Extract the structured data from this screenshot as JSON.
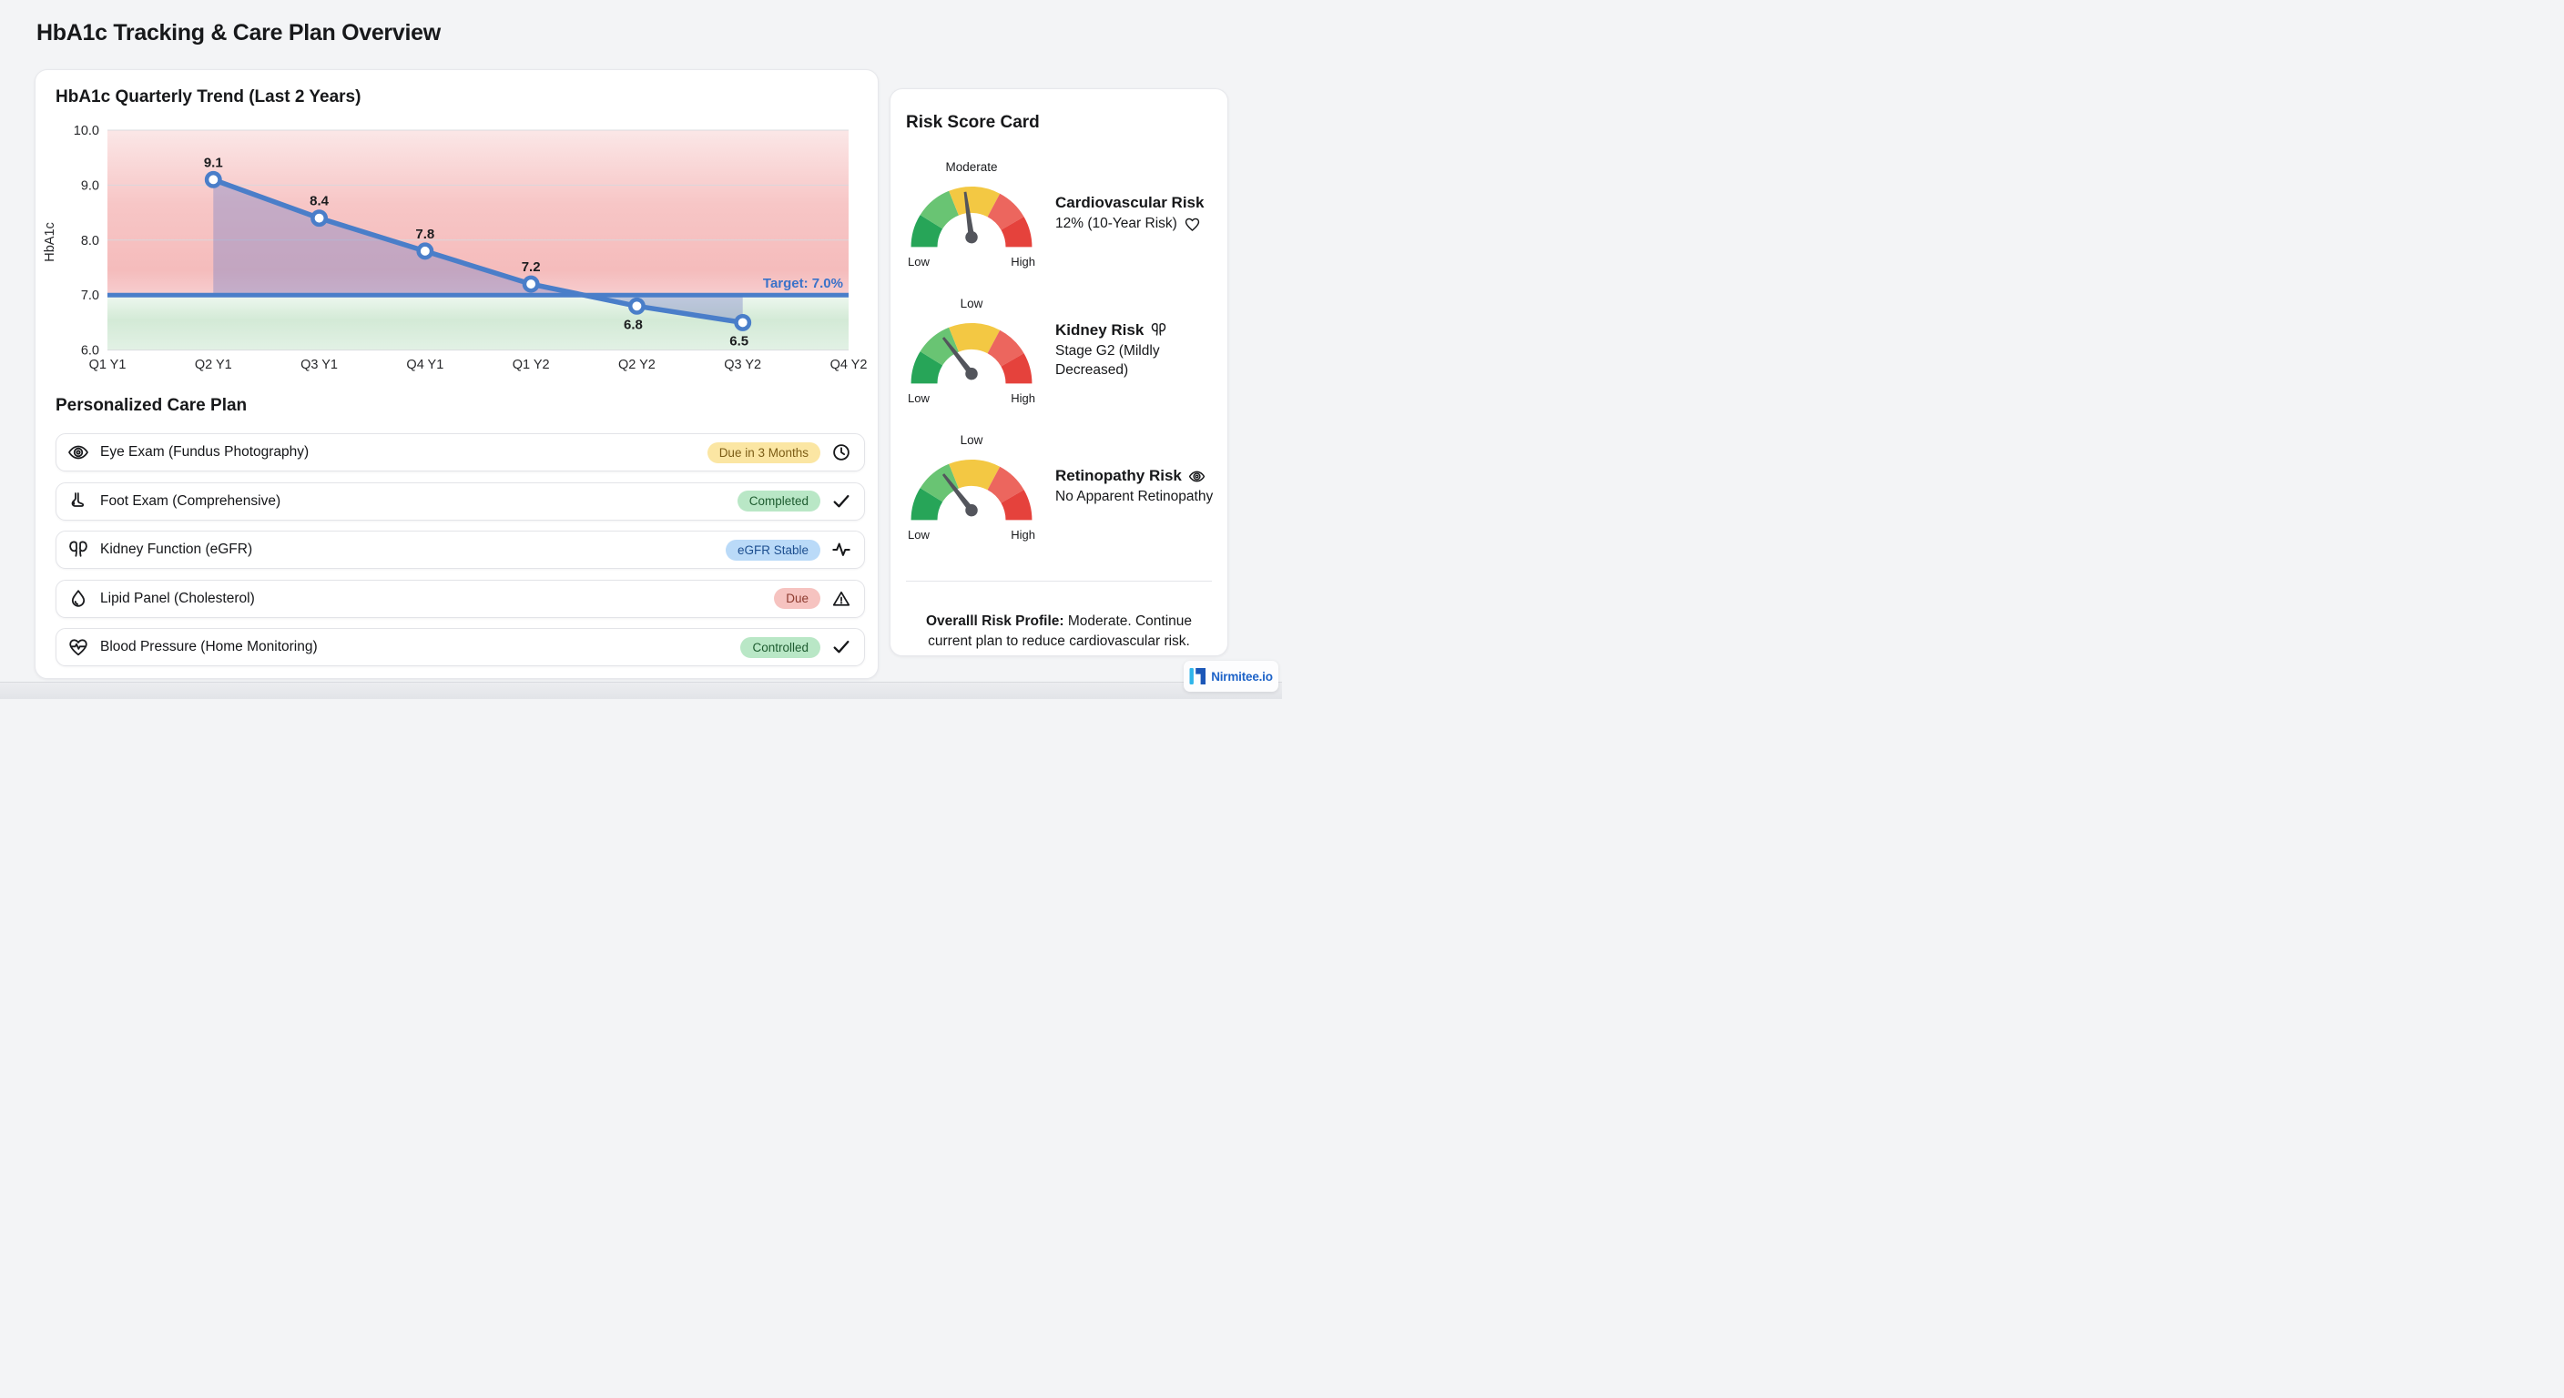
{
  "page": {
    "title": "HbA1c Tracking & Care Plan Overview"
  },
  "chart": {
    "title": "HbA1c Quarterly Trend (Last 2 Years)"
  },
  "chart_data": {
    "type": "line",
    "title": "HbA1c Quarterly Trend (Last 2 Years)",
    "ylabel": "HbA1c",
    "x_categories": [
      "Q1 Y1",
      "Q2 Y1",
      "Q3 Y1",
      "Q4 Y1",
      "Q1 Y2",
      "Q2 Y2",
      "Q3 Y2",
      "Q4 Y2"
    ],
    "y_ticks": [
      "10.0",
      "9.0",
      "8.0",
      "7.0",
      "6.0"
    ],
    "ylim": [
      6.0,
      10.0
    ],
    "grid": true,
    "legend": false,
    "series": [
      {
        "name": "HbA1c",
        "color": "#4a7ec9",
        "points": [
          {
            "x": "Q2 Y1",
            "y": 9.1,
            "label": "9.1",
            "label_position": "above"
          },
          {
            "x": "Q3 Y1",
            "y": 8.4,
            "label": "8.4",
            "label_position": "above"
          },
          {
            "x": "Q4 Y1",
            "y": 7.8,
            "label": "7.8",
            "label_position": "above"
          },
          {
            "x": "Q1 Y2",
            "y": 7.2,
            "label": "7.2",
            "label_position": "above"
          },
          {
            "x": "Q2 Y2",
            "y": 6.8,
            "label": "6.8",
            "label_position": "below"
          },
          {
            "x": "Q3 Y2",
            "y": 6.5,
            "label": "6.5",
            "label_position": "below"
          }
        ]
      }
    ],
    "target": {
      "value": 7.0,
      "label": "Target: 7.0%",
      "color": "#3a72c9"
    },
    "zones": [
      {
        "range": [
          7.0,
          10.0
        ],
        "meaning": "above target",
        "color": "#f6c2c2"
      },
      {
        "range": [
          6.0,
          7.0
        ],
        "meaning": "below target",
        "color": "#d3ead6"
      }
    ]
  },
  "care_plan": {
    "title": "Personalized Care Plan",
    "items": [
      {
        "icon": "eye-icon",
        "label": "Eye Exam (Fundus Photography)",
        "badge": "Due in 3 Months",
        "badge_bg": "#fbe6a3",
        "badge_fg": "#7c5d16",
        "status_icon": "clock-icon"
      },
      {
        "icon": "foot-icon",
        "label": "Foot Exam (Comprehensive)",
        "badge": "Completed",
        "badge_bg": "#b9e7c6",
        "badge_fg": "#1e5c30",
        "status_icon": "check-icon"
      },
      {
        "icon": "kidney-icon",
        "label": "Kidney Function (eGFR)",
        "badge": "eGFR Stable",
        "badge_bg": "#badaf8",
        "badge_fg": "#1d4f90",
        "status_icon": "activity-icon"
      },
      {
        "icon": "droplet-icon",
        "label": "Lipid Panel (Cholesterol)",
        "badge": "Due",
        "badge_bg": "#f6c3c0",
        "badge_fg": "#8c3a2e",
        "status_icon": "warning-icon"
      },
      {
        "icon": "heart-pulse-icon",
        "label": "Blood Pressure (Home Monitoring)",
        "badge": "Controlled",
        "badge_bg": "#b9e7c6",
        "badge_fg": "#1e5c30",
        "status_icon": "check-icon"
      }
    ]
  },
  "risk_card": {
    "title": "Risk Score Card",
    "gauges": [
      {
        "reading": "Moderate",
        "low_label": "Low",
        "high_label": "High",
        "name": "Cardiovascular Risk",
        "detail": "12% (10-Year Risk)",
        "icon": "heart-icon",
        "icon_position": "detail",
        "needle_rotation_deg": -8
      },
      {
        "reading": "Low",
        "low_label": "Low",
        "high_label": "High",
        "name": "Kidney Risk",
        "detail": "Stage G2 (Mildly Decreased)",
        "icon": "kidney-icon",
        "icon_position": "title",
        "needle_rotation_deg": -38
      },
      {
        "reading": "Low",
        "low_label": "Low",
        "high_label": "High",
        "name": "Retinopathy Risk",
        "detail": "No Apparent Retinopathy",
        "icon": "eye-icon",
        "icon_position": "title",
        "needle_rotation_deg": -38
      }
    ],
    "gauge_colors": [
      "#27a558",
      "#69c473",
      "#f3c843",
      "#ec665e",
      "#e5423c"
    ],
    "summary_bold": "Overalll Risk Profile:",
    "summary_text": " Moderate. Continue current plan to reduce cardiovascular risk."
  },
  "footer": {
    "brand": "Nirmitee.io"
  }
}
